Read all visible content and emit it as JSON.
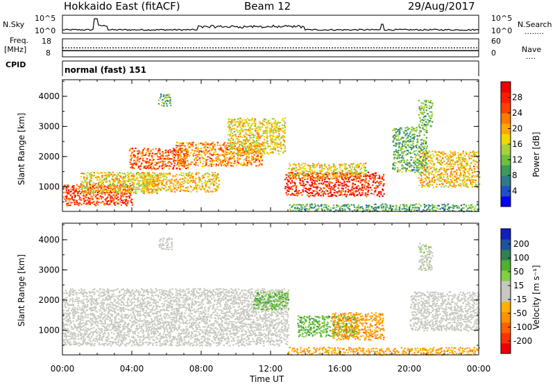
{
  "header": {
    "radar": "Hokkaido East (fitACF)",
    "beam": "Beam 12",
    "date": "29/Aug/2017"
  },
  "nsky_panel": {
    "left_label": "N.Sky",
    "left_ticks": [
      "10^5",
      "10^0"
    ],
    "right_label": "N.Search",
    "right_ticks": [
      "10^5",
      "10^0"
    ],
    "right_line": "........"
  },
  "freq_panel": {
    "left_label_1": "Freq.",
    "left_label_2": "[MHz]",
    "left_ticks": [
      "18",
      "8"
    ],
    "right_label": "Nave",
    "right_ticks": [
      "60",
      "0"
    ],
    "right_line": "...."
  },
  "cpid_panel": {
    "left_label": "CPID",
    "mode_text": "normal (fast) 151"
  },
  "chart_data": [
    {
      "type": "heatmap",
      "title": "",
      "ylabel": "Slant Range [km]",
      "xlabel": "",
      "x_ticks": [
        "00:00",
        "04:00",
        "08:00",
        "12:00",
        "16:00",
        "20:00",
        "00:00"
      ],
      "y_ticks": [
        "1000",
        "2000",
        "3000",
        "4000"
      ],
      "xlim_hours": [
        0,
        24
      ],
      "ylim_km": [
        180,
        4550
      ],
      "colorbar": {
        "label": "Power [dB]",
        "ticks": [
          "4",
          "8",
          "12",
          "16",
          "20",
          "24",
          "28"
        ],
        "range": [
          0,
          32
        ],
        "colors": [
          "#0000ff",
          "#1f50c8",
          "#2f7a8a",
          "#3c9a5a",
          "#6cc040",
          "#a8d23a",
          "#f0d800",
          "#ffa800",
          "#ff7a00",
          "#ff4000",
          "#ff1a00",
          "#ee0000"
        ]
      },
      "regions": [
        {
          "t0": 0.0,
          "t1": 4.0,
          "r0": 400,
          "r1": 1100,
          "level": 0.85
        },
        {
          "t0": 1.0,
          "t1": 5.5,
          "r0": 800,
          "r1": 1500,
          "level": 0.55
        },
        {
          "t0": 3.8,
          "t1": 7.2,
          "r0": 1600,
          "r1": 2300,
          "level": 0.8
        },
        {
          "t0": 4.5,
          "t1": 9.0,
          "r0": 850,
          "r1": 1500,
          "level": 0.6
        },
        {
          "t0": 6.5,
          "t1": 11.5,
          "r0": 1700,
          "r1": 2500,
          "level": 0.7
        },
        {
          "t0": 9.5,
          "t1": 12.8,
          "r0": 2100,
          "r1": 3300,
          "level": 0.55
        },
        {
          "t0": 12.8,
          "t1": 18.5,
          "r0": 700,
          "r1": 1500,
          "level": 0.9
        },
        {
          "t0": 13.0,
          "t1": 17.5,
          "r0": 1300,
          "r1": 1800,
          "level": 0.55
        },
        {
          "t0": 20.5,
          "t1": 24.0,
          "r0": 1000,
          "r1": 2200,
          "level": 0.6
        },
        {
          "t0": 19.0,
          "t1": 21.0,
          "r0": 1500,
          "r1": 3000,
          "level": 0.35
        },
        {
          "t0": 5.5,
          "t1": 6.2,
          "r0": 3700,
          "r1": 4100,
          "level": 0.35
        },
        {
          "t0": 20.5,
          "t1": 21.3,
          "r0": 3000,
          "r1": 3900,
          "level": 0.35
        },
        {
          "t0": 13.0,
          "t1": 24.0,
          "r0": 200,
          "r1": 450,
          "level": 0.3
        }
      ]
    },
    {
      "type": "heatmap",
      "title": "",
      "ylabel": "Slant Range [km]",
      "xlabel": "Time UT",
      "x_ticks": [
        "00:00",
        "04:00",
        "08:00",
        "12:00",
        "16:00",
        "20:00",
        "00:00"
      ],
      "y_ticks": [
        "1000",
        "2000",
        "3000",
        "4000"
      ],
      "xlim_hours": [
        0,
        24
      ],
      "ylim_km": [
        180,
        4550
      ],
      "colorbar": {
        "label": "Velocity [m s⁻¹]",
        "ticks": [
          "200",
          "100",
          "50",
          "15",
          "-15",
          "-50",
          "-100",
          "-200"
        ],
        "range": [
          -250,
          250
        ],
        "colors": [
          "#ee0000",
          "#ff3000",
          "#ff6000",
          "#ff9000",
          "#ffb000",
          "#c8c8c0",
          "#c8c8c0",
          "#80d040",
          "#50b030",
          "#308050",
          "#2050a0",
          "#1020c0"
        ]
      },
      "regions": [
        {
          "t0": 0.0,
          "t1": 13.0,
          "r0": 500,
          "r1": 2400,
          "level": 0.5
        },
        {
          "t0": 11.0,
          "t1": 13.0,
          "r0": 1700,
          "r1": 2300,
          "level": 0.7
        },
        {
          "t0": 13.5,
          "t1": 17.0,
          "r0": 800,
          "r1": 1500,
          "level": 0.7
        },
        {
          "t0": 15.5,
          "t1": 18.5,
          "r0": 700,
          "r1": 1600,
          "level": 0.3
        },
        {
          "t0": 20.0,
          "t1": 24.0,
          "r0": 1000,
          "r1": 2300,
          "level": 0.5
        },
        {
          "t0": 13.0,
          "t1": 24.0,
          "r0": 200,
          "r1": 450,
          "level": 0.32
        },
        {
          "t0": 5.5,
          "t1": 6.3,
          "r0": 3700,
          "r1": 4100,
          "level": 0.5
        },
        {
          "t0": 20.5,
          "t1": 21.3,
          "r0": 3000,
          "r1": 3900,
          "level": 0.55
        }
      ]
    }
  ]
}
